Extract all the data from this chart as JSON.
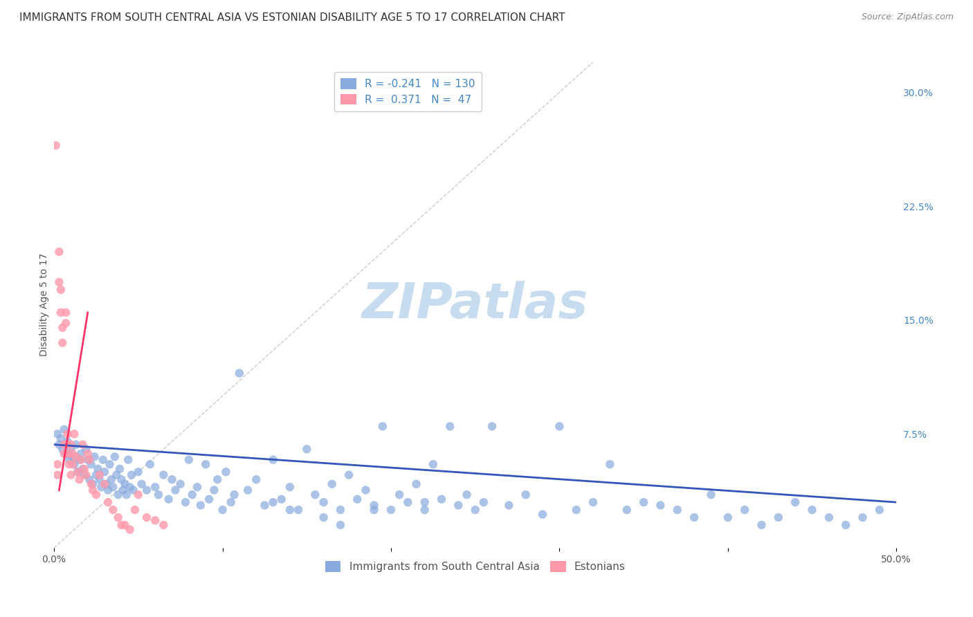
{
  "title": "IMMIGRANTS FROM SOUTH CENTRAL ASIA VS ESTONIAN DISABILITY AGE 5 TO 17 CORRELATION CHART",
  "source": "Source: ZipAtlas.com",
  "xlabel": "",
  "ylabel": "Disability Age 5 to 17",
  "xlim": [
    0.0,
    0.5
  ],
  "ylim": [
    0.0,
    0.32
  ],
  "xticks": [
    0.0,
    0.1,
    0.2,
    0.3,
    0.4,
    0.5
  ],
  "xticklabels": [
    "0.0%",
    "",
    "",
    "",
    "",
    "50.0%"
  ],
  "yticks_right": [
    0.0,
    0.075,
    0.15,
    0.225,
    0.3
  ],
  "ytick_right_labels": [
    "",
    "7.5%",
    "15.0%",
    "22.5%",
    "30.0%"
  ],
  "blue_color": "#88AADD",
  "pink_color": "#FF99AA",
  "blue_line_color": "#3355BB",
  "pink_line_color": "#FF3366",
  "legend_r_blue": "-0.241",
  "legend_n_blue": "130",
  "legend_r_pink": "0.371",
  "legend_n_pink": "47",
  "legend_label_blue": "Immigrants from South Central Asia",
  "legend_label_pink": "Estonians",
  "watermark": "ZIPatlas",
  "blue_scatter_x": [
    0.002,
    0.003,
    0.004,
    0.005,
    0.006,
    0.007,
    0.008,
    0.009,
    0.01,
    0.011,
    0.012,
    0.013,
    0.014,
    0.015,
    0.016,
    0.017,
    0.018,
    0.019,
    0.02,
    0.021,
    0.022,
    0.023,
    0.024,
    0.025,
    0.026,
    0.027,
    0.028,
    0.029,
    0.03,
    0.031,
    0.032,
    0.033,
    0.034,
    0.035,
    0.036,
    0.037,
    0.038,
    0.039,
    0.04,
    0.041,
    0.042,
    0.043,
    0.044,
    0.045,
    0.046,
    0.047,
    0.05,
    0.052,
    0.055,
    0.057,
    0.06,
    0.062,
    0.065,
    0.068,
    0.07,
    0.072,
    0.075,
    0.078,
    0.08,
    0.082,
    0.085,
    0.087,
    0.09,
    0.092,
    0.095,
    0.097,
    0.1,
    0.102,
    0.105,
    0.107,
    0.11,
    0.115,
    0.12,
    0.125,
    0.13,
    0.135,
    0.14,
    0.145,
    0.15,
    0.155,
    0.16,
    0.165,
    0.17,
    0.175,
    0.18,
    0.185,
    0.19,
    0.195,
    0.2,
    0.205,
    0.21,
    0.215,
    0.22,
    0.225,
    0.23,
    0.235,
    0.24,
    0.245,
    0.25,
    0.255,
    0.26,
    0.27,
    0.28,
    0.29,
    0.3,
    0.31,
    0.32,
    0.33,
    0.34,
    0.35,
    0.36,
    0.37,
    0.38,
    0.39,
    0.4,
    0.41,
    0.42,
    0.43,
    0.44,
    0.45,
    0.46,
    0.47,
    0.48,
    0.49,
    0.22,
    0.19,
    0.17,
    0.16,
    0.14,
    0.13
  ],
  "blue_scatter_y": [
    0.075,
    0.068,
    0.072,
    0.065,
    0.078,
    0.062,
    0.07,
    0.058,
    0.065,
    0.06,
    0.055,
    0.068,
    0.05,
    0.058,
    0.062,
    0.052,
    0.048,
    0.065,
    0.058,
    0.045,
    0.055,
    0.042,
    0.06,
    0.048,
    0.052,
    0.045,
    0.04,
    0.058,
    0.05,
    0.042,
    0.038,
    0.055,
    0.045,
    0.04,
    0.06,
    0.048,
    0.035,
    0.052,
    0.045,
    0.038,
    0.042,
    0.035,
    0.058,
    0.04,
    0.048,
    0.038,
    0.05,
    0.042,
    0.038,
    0.055,
    0.04,
    0.035,
    0.048,
    0.032,
    0.045,
    0.038,
    0.042,
    0.03,
    0.058,
    0.035,
    0.04,
    0.028,
    0.055,
    0.032,
    0.038,
    0.045,
    0.025,
    0.05,
    0.03,
    0.035,
    0.115,
    0.038,
    0.045,
    0.028,
    0.058,
    0.032,
    0.04,
    0.025,
    0.065,
    0.035,
    0.03,
    0.042,
    0.025,
    0.048,
    0.032,
    0.038,
    0.028,
    0.08,
    0.025,
    0.035,
    0.03,
    0.042,
    0.025,
    0.055,
    0.032,
    0.08,
    0.028,
    0.035,
    0.025,
    0.03,
    0.08,
    0.028,
    0.035,
    0.022,
    0.08,
    0.025,
    0.03,
    0.055,
    0.025,
    0.03,
    0.028,
    0.025,
    0.02,
    0.035,
    0.02,
    0.025,
    0.015,
    0.02,
    0.03,
    0.025,
    0.02,
    0.015,
    0.02,
    0.025,
    0.03,
    0.025,
    0.015,
    0.02,
    0.025,
    0.03
  ],
  "pink_scatter_x": [
    0.001,
    0.002,
    0.002,
    0.003,
    0.003,
    0.004,
    0.004,
    0.005,
    0.005,
    0.006,
    0.006,
    0.007,
    0.007,
    0.008,
    0.008,
    0.009,
    0.009,
    0.01,
    0.01,
    0.011,
    0.011,
    0.012,
    0.013,
    0.014,
    0.015,
    0.016,
    0.017,
    0.018,
    0.019,
    0.02,
    0.021,
    0.022,
    0.023,
    0.025,
    0.027,
    0.03,
    0.032,
    0.035,
    0.038,
    0.04,
    0.042,
    0.045,
    0.048,
    0.05,
    0.055,
    0.06,
    0.065
  ],
  "pink_scatter_y": [
    0.265,
    0.055,
    0.048,
    0.195,
    0.175,
    0.17,
    0.155,
    0.145,
    0.135,
    0.068,
    0.062,
    0.155,
    0.148,
    0.075,
    0.068,
    0.062,
    0.055,
    0.068,
    0.048,
    0.062,
    0.055,
    0.075,
    0.06,
    0.05,
    0.045,
    0.058,
    0.068,
    0.052,
    0.048,
    0.062,
    0.058,
    0.042,
    0.038,
    0.035,
    0.048,
    0.042,
    0.03,
    0.025,
    0.02,
    0.015,
    0.015,
    0.012,
    0.025,
    0.035,
    0.02,
    0.018,
    0.015
  ],
  "blue_trend_x": [
    0.0,
    0.5
  ],
  "blue_trend_y": [
    0.068,
    0.03
  ],
  "pink_trend_x": [
    0.003,
    0.02
  ],
  "pink_trend_y": [
    0.038,
    0.155
  ],
  "diag_line_x": [
    0.0,
    0.32
  ],
  "diag_line_y": [
    0.0,
    0.32
  ],
  "grid_color": "#DDDDDD",
  "background_color": "#FFFFFF",
  "title_fontsize": 11,
  "axis_label_fontsize": 10,
  "tick_fontsize": 10,
  "watermark_color": "#C8DCF0",
  "watermark_fontsize": 52
}
